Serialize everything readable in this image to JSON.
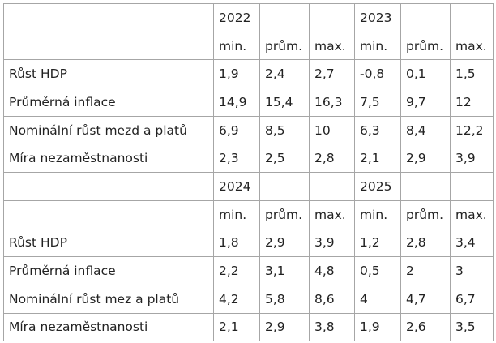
{
  "blocks": [
    {
      "years": [
        "2022",
        "2023"
      ],
      "stats": [
        "min.",
        "prům.",
        "max.",
        "min.",
        "prům.",
        "max."
      ],
      "rows": [
        {
          "label": "Růst HDP",
          "values": [
            "1,9",
            "2,4",
            "2,7",
            "-0,8",
            "0,1",
            "1,5"
          ]
        },
        {
          "label": "Průměrná inflace",
          "values": [
            "14,9",
            "15,4",
            "16,3",
            "7,5",
            "9,7",
            "12"
          ]
        },
        {
          "label": "Nominální růst mezd a platů",
          "values": [
            "6,9",
            "8,5",
            "10",
            "6,3",
            "8,4",
            "12,2"
          ]
        },
        {
          "label": "Míra nezaměstnanosti",
          "values": [
            "2,3",
            "2,5",
            "2,8",
            "2,1",
            "2,9",
            "3,9"
          ]
        }
      ]
    },
    {
      "years": [
        "2024",
        "2025"
      ],
      "stats": [
        "min.",
        "prům.",
        "max.",
        "min.",
        "prům.",
        "max."
      ],
      "rows": [
        {
          "label": "Růst HDP",
          "values": [
            "1,8",
            "2,9",
            "3,9",
            "1,2",
            "2,8",
            "3,4"
          ]
        },
        {
          "label": "Průměrná inflace",
          "values": [
            "2,2",
            "3,1",
            "4,8",
            "0,5",
            "2",
            "3"
          ]
        },
        {
          "label": "Nominální růst mez a platů",
          "values": [
            "4,2",
            "5,8",
            "8,6",
            "4",
            "4,7",
            "6,7"
          ]
        },
        {
          "label": "Míra nezaměstnanosti",
          "values": [
            "2,1",
            "2,9",
            "3,8",
            "1,9",
            "2,6",
            "3,5"
          ]
        }
      ]
    }
  ]
}
